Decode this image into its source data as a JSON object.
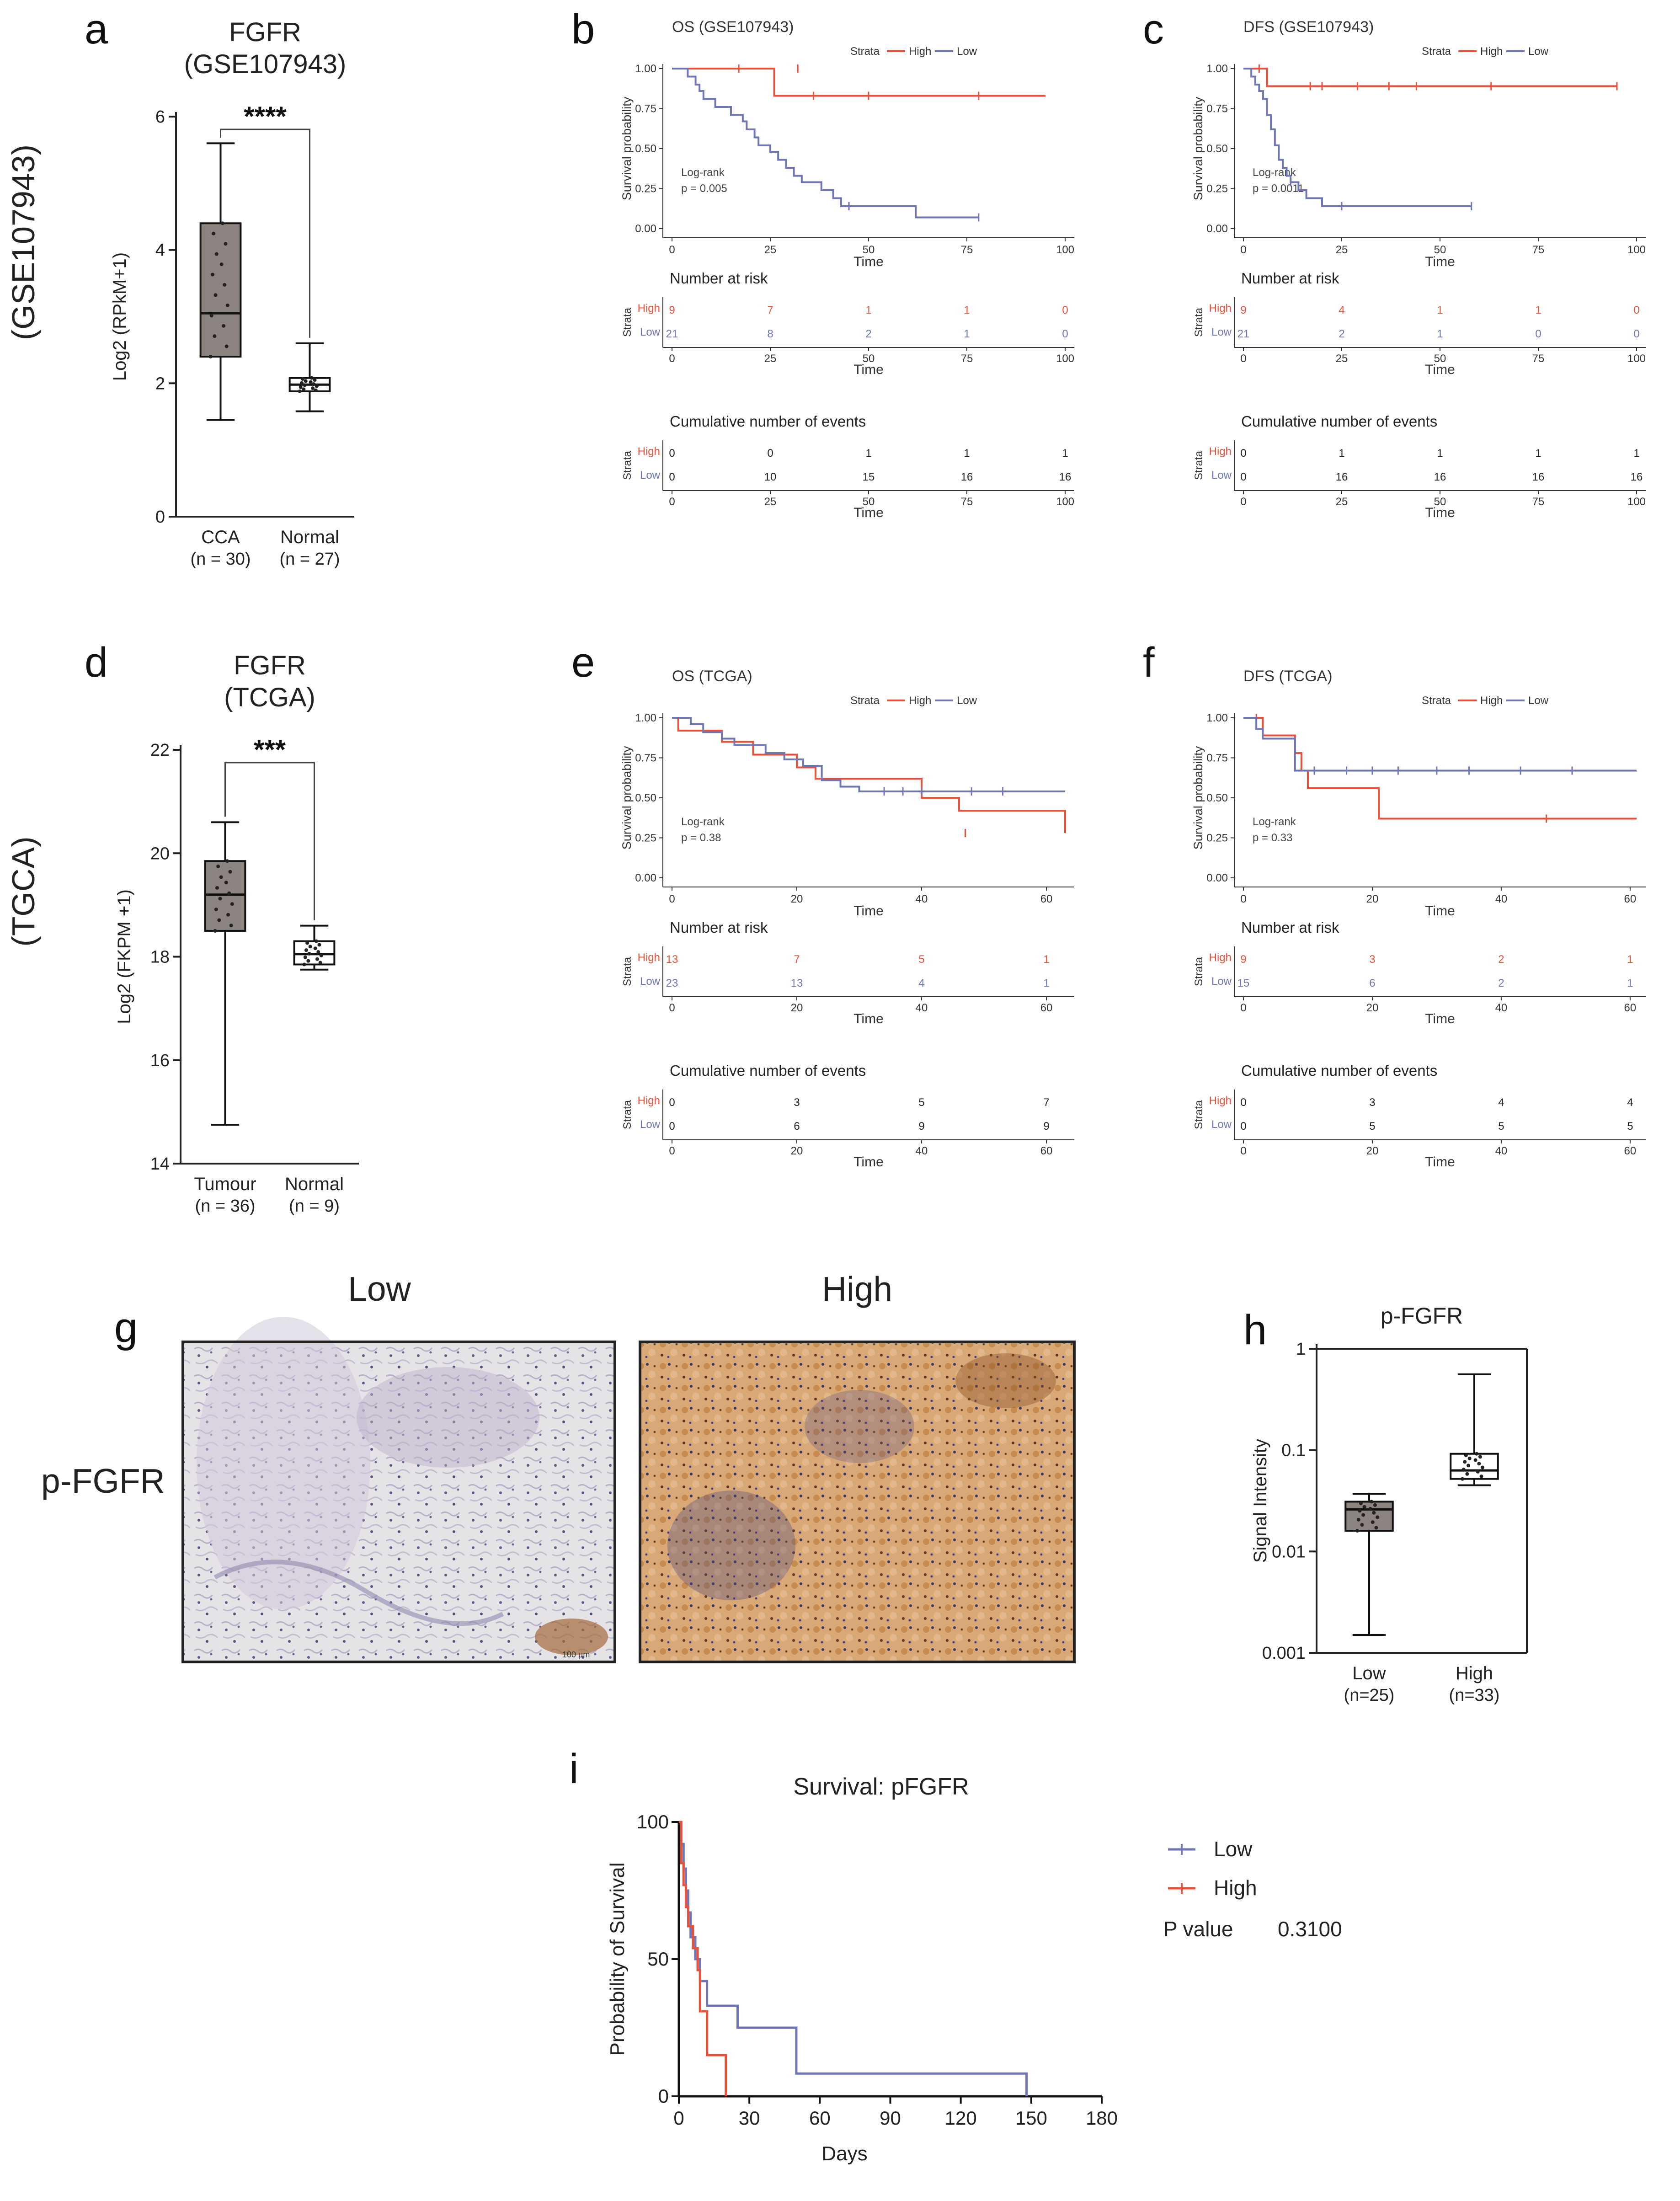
{
  "panel_labels": {
    "a": "a",
    "b": "b",
    "c": "c",
    "d": "d",
    "e": "e",
    "f": "f",
    "g": "g",
    "h": "h",
    "i": "i"
  },
  "row_labels": {
    "top": "(GSE107943)",
    "middle": "(TGCA)"
  },
  "colors": {
    "high": "#e8503a",
    "low": "#6e76b5",
    "box_fill": "#8c8480",
    "axis": "#222222"
  },
  "chart_data": [
    {
      "id": "a",
      "type": "box",
      "title_line1": "FGFR",
      "title_line2": "(GSE107943)",
      "ylabel": "Log2 (RPkM+1)",
      "ylim": [
        0,
        6
      ],
      "yticks": [
        "0",
        "2",
        "4",
        "6"
      ],
      "significance": "****",
      "groups": [
        {
          "label": "CCA",
          "n_label": "(n = 30)",
          "min": 1.45,
          "q1": 2.4,
          "median": 3.05,
          "q3": 4.4,
          "max": 5.6,
          "filled": true
        },
        {
          "label": "Normal",
          "n_label": "(n = 27)",
          "min": 1.58,
          "q1": 1.88,
          "median": 1.98,
          "q3": 2.08,
          "max": 2.6,
          "filled": false
        }
      ]
    },
    {
      "id": "d",
      "type": "box",
      "title_line1": "FGFR",
      "title_line2": "(TCGA)",
      "ylabel": "Log2 (FKPM +1)",
      "ylim": [
        14,
        22
      ],
      "yticks": [
        "14",
        "16",
        "18",
        "20",
        "22"
      ],
      "significance": "***",
      "groups": [
        {
          "label": "Tumour",
          "n_label": "(n = 36)",
          "min": 14.75,
          "q1": 18.5,
          "median": 19.2,
          "q3": 19.85,
          "max": 20.6,
          "filled": true
        },
        {
          "label": "Normal",
          "n_label": "(n = 9)",
          "min": 17.75,
          "q1": 17.85,
          "median": 18.05,
          "q3": 18.3,
          "max": 18.6,
          "filled": false
        }
      ]
    },
    {
      "id": "b",
      "type": "line",
      "subtype": "kaplan-meier",
      "title": "OS (GSE107943)",
      "legend_title": "Strata",
      "legend_high": "High",
      "legend_low": "Low",
      "ylabel": "Survival probability",
      "xlabel": "Time",
      "xlim": [
        0,
        100
      ],
      "xticks": [
        "0",
        "25",
        "50",
        "75",
        "100"
      ],
      "yticks": [
        "0.00",
        "0.25",
        "0.50",
        "0.75",
        "1.00"
      ],
      "logrank_label": "Log-rank",
      "pvalue": "p = 0.005",
      "series": [
        {
          "name": "High",
          "x": [
            0,
            26,
            26,
            95
          ],
          "y": [
            1,
            1,
            0.83,
            0.83
          ],
          "censor_x": [
            17,
            32,
            36,
            50,
            78
          ],
          "censor_y": [
            1,
            1,
            0.83,
            0.83,
            0.83
          ]
        },
        {
          "name": "Low",
          "x": [
            0,
            3,
            4,
            6,
            7,
            8,
            9,
            11,
            13,
            15,
            17,
            18,
            19,
            21,
            22,
            23,
            25,
            27,
            29,
            31,
            33,
            36,
            38,
            41,
            43,
            46,
            50,
            57,
            62,
            67,
            78
          ],
          "y": [
            1,
            1,
            0.95,
            0.9,
            0.86,
            0.81,
            0.81,
            0.76,
            0.76,
            0.71,
            0.71,
            0.67,
            0.62,
            0.57,
            0.52,
            0.52,
            0.48,
            0.43,
            0.38,
            0.33,
            0.29,
            0.29,
            0.24,
            0.19,
            0.14,
            0.14,
            0.14,
            0.14,
            0.07,
            0.07,
            0.07
          ],
          "censor_x": [
            45,
            78
          ],
          "censor_y": [
            0.14,
            0.07
          ]
        }
      ],
      "risk_title": "Number at risk",
      "events_title": "Cumulative number of events",
      "strata_label": "Strata",
      "table_x": [
        0,
        25,
        50,
        75,
        100
      ],
      "risk_high": [
        "9",
        "7",
        "1",
        "1",
        "0"
      ],
      "risk_low": [
        "21",
        "8",
        "2",
        "1",
        "0"
      ],
      "events_high": [
        "0",
        "0",
        "1",
        "1",
        "1"
      ],
      "events_low": [
        "0",
        "10",
        "15",
        "16",
        "16"
      ]
    },
    {
      "id": "c",
      "type": "line",
      "subtype": "kaplan-meier",
      "title": "DFS (GSE107943)",
      "legend_title": "Strata",
      "legend_high": "High",
      "legend_low": "Low",
      "ylabel": "Survival probability",
      "xlabel": "Time",
      "xlim": [
        0,
        100
      ],
      "xticks": [
        "0",
        "25",
        "50",
        "75",
        "100"
      ],
      "yticks": [
        "0.00",
        "0.25",
        "0.50",
        "0.75",
        "1.00"
      ],
      "logrank_label": "Log-rank",
      "pvalue": "p = 0.0011",
      "series": [
        {
          "name": "High",
          "x": [
            0,
            6,
            6,
            95
          ],
          "y": [
            1,
            1,
            0.89,
            0.89
          ],
          "censor_x": [
            4,
            17,
            20,
            29,
            37,
            44,
            63,
            95
          ],
          "censor_y": [
            1,
            0.89,
            0.89,
            0.89,
            0.89,
            0.89,
            0.89,
            0.89
          ]
        },
        {
          "name": "Low",
          "x": [
            0,
            2,
            3,
            4,
            5,
            6,
            7,
            8,
            9,
            10,
            11,
            12,
            13,
            14,
            16,
            18,
            20,
            22,
            25,
            58
          ],
          "y": [
            1,
            0.95,
            0.9,
            0.86,
            0.81,
            0.71,
            0.62,
            0.52,
            0.43,
            0.38,
            0.33,
            0.29,
            0.29,
            0.24,
            0.19,
            0.19,
            0.14,
            0.14,
            0.14,
            0.14
          ],
          "censor_x": [
            12,
            25,
            58
          ],
          "censor_y": [
            0.29,
            0.14,
            0.14
          ]
        }
      ],
      "risk_title": "Number at risk",
      "events_title": "Cumulative number of events",
      "strata_label": "Strata",
      "table_x": [
        0,
        25,
        50,
        75,
        100
      ],
      "risk_high": [
        "9",
        "4",
        "1",
        "1",
        "0"
      ],
      "risk_low": [
        "21",
        "2",
        "1",
        "0",
        "0"
      ],
      "events_high": [
        "0",
        "1",
        "1",
        "1",
        "1"
      ],
      "events_low": [
        "0",
        "16",
        "16",
        "16",
        "16"
      ]
    },
    {
      "id": "e",
      "type": "line",
      "subtype": "kaplan-meier",
      "title": "OS (TCGA)",
      "legend_title": "Strata",
      "legend_high": "High",
      "legend_low": "Low",
      "ylabel": "Survival probability",
      "xlabel": "Time",
      "xlim": [
        0,
        63
      ],
      "xticks": [
        "0",
        "20",
        "40",
        "60"
      ],
      "yticks": [
        "0.00",
        "0.25",
        "0.50",
        "0.75",
        "1.00"
      ],
      "logrank_label": "Log-rank",
      "pvalue": "p = 0.38",
      "series": [
        {
          "name": "High",
          "x": [
            0,
            1,
            2,
            8,
            13,
            17,
            20,
            23,
            30,
            40,
            46,
            63
          ],
          "y": [
            1,
            0.92,
            0.92,
            0.85,
            0.77,
            0.77,
            0.69,
            0.62,
            0.62,
            0.5,
            0.42,
            0.28
          ],
          "censor_x": [
            47
          ],
          "censor_y": [
            0.28
          ]
        },
        {
          "name": "Low",
          "x": [
            0,
            3,
            5,
            8,
            10,
            12,
            15,
            18,
            21,
            24,
            27,
            30,
            63
          ],
          "y": [
            1,
            0.96,
            0.91,
            0.87,
            0.83,
            0.83,
            0.78,
            0.74,
            0.7,
            0.61,
            0.57,
            0.54,
            0.54
          ],
          "censor_x": [
            34,
            37,
            40,
            48,
            53
          ],
          "censor_y": [
            0.54,
            0.54,
            0.54,
            0.54,
            0.54
          ]
        }
      ],
      "risk_title": "Number at risk",
      "events_title": "Cumulative number of events",
      "strata_label": "Strata",
      "table_x": [
        0,
        20,
        40,
        60
      ],
      "risk_high": [
        "13",
        "7",
        "5",
        "1"
      ],
      "risk_low": [
        "23",
        "13",
        "4",
        "1"
      ],
      "events_high": [
        "0",
        "3",
        "5",
        "7"
      ],
      "events_low": [
        "0",
        "6",
        "9",
        "9"
      ]
    },
    {
      "id": "f",
      "type": "line",
      "subtype": "kaplan-meier",
      "title": "DFS (TCGA)",
      "legend_title": "Strata",
      "legend_high": "High",
      "legend_low": "Low",
      "ylabel": "Survival probability",
      "xlabel": "Time",
      "xlim": [
        0,
        61
      ],
      "xticks": [
        "0",
        "20",
        "40",
        "60"
      ],
      "yticks": [
        "0.00",
        "0.25",
        "0.50",
        "0.75",
        "1.00"
      ],
      "logrank_label": "Log-rank",
      "pvalue": "p = 0.33",
      "series": [
        {
          "name": "High",
          "x": [
            0,
            2,
            3,
            6,
            8,
            9,
            10,
            20,
            21,
            61
          ],
          "y": [
            1,
            1,
            0.89,
            0.89,
            0.78,
            0.67,
            0.56,
            0.56,
            0.37,
            0.37
          ],
          "censor_x": [
            2,
            47
          ],
          "censor_y": [
            1,
            0.37
          ]
        },
        {
          "name": "Low",
          "x": [
            0,
            2,
            3,
            6,
            8,
            61
          ],
          "y": [
            1,
            0.93,
            0.87,
            0.87,
            0.67,
            0.67
          ],
          "censor_x": [
            11,
            16,
            20,
            24,
            30,
            35,
            43,
            51
          ],
          "censor_y": [
            0.67,
            0.67,
            0.67,
            0.67,
            0.67,
            0.67,
            0.67,
            0.67
          ]
        }
      ],
      "risk_title": "Number at risk",
      "events_title": "Cumulative number of events",
      "strata_label": "Strata",
      "table_x": [
        0,
        20,
        40,
        60
      ],
      "risk_high": [
        "9",
        "3",
        "2",
        "1"
      ],
      "risk_low": [
        "15",
        "6",
        "2",
        "1"
      ],
      "events_high": [
        "0",
        "3",
        "4",
        "4"
      ],
      "events_low": [
        "0",
        "5",
        "5",
        "5"
      ]
    },
    {
      "id": "h",
      "type": "box",
      "title": "p-FGFR",
      "ylabel": "Signal Intensity",
      "yscale": "log",
      "ylim": [
        0.001,
        1
      ],
      "yticks": [
        "0.001",
        "0.01",
        "0.1",
        "1"
      ],
      "groups": [
        {
          "label": "Low",
          "n_label": "(n=25)",
          "min": 0.0015,
          "q1": 0.016,
          "median": 0.026,
          "q3": 0.031,
          "max": 0.037,
          "filled": true
        },
        {
          "label": "High",
          "n_label": "(n=33)",
          "min": 0.045,
          "q1": 0.052,
          "median": 0.063,
          "q3": 0.092,
          "max": 0.56,
          "filled": false
        }
      ]
    },
    {
      "id": "i",
      "type": "line",
      "subtype": "kaplan-meier",
      "title": "Survival: pFGFR",
      "xlabel": "Days",
      "ylabel": "Probability of Survival",
      "xlim": [
        0,
        180
      ],
      "ylim": [
        0,
        100
      ],
      "xticks": [
        "0",
        "30",
        "60",
        "90",
        "120",
        "150",
        "180"
      ],
      "yticks": [
        "0",
        "50",
        "100"
      ],
      "legend_low": "Low",
      "legend_high": "High",
      "pvalue_label": "P value",
      "pvalue": "0.3100",
      "series": [
        {
          "name": "Low",
          "x": [
            0,
            1,
            2,
            3,
            4,
            5,
            7,
            9,
            12,
            25,
            50,
            148
          ],
          "y": [
            100,
            92,
            83,
            75,
            67,
            58,
            50,
            42,
            33,
            25,
            8.3,
            0
          ]
        },
        {
          "name": "High",
          "x": [
            0,
            1,
            2,
            3,
            4,
            6,
            8,
            9,
            12,
            20
          ],
          "y": [
            100,
            85,
            77,
            69,
            62,
            54,
            46,
            31,
            15,
            0
          ]
        }
      ]
    }
  ],
  "histology": {
    "title_low": "Low",
    "title_high": "High",
    "stain_label": "p-FGFR",
    "scale_bar": "100 µm"
  }
}
